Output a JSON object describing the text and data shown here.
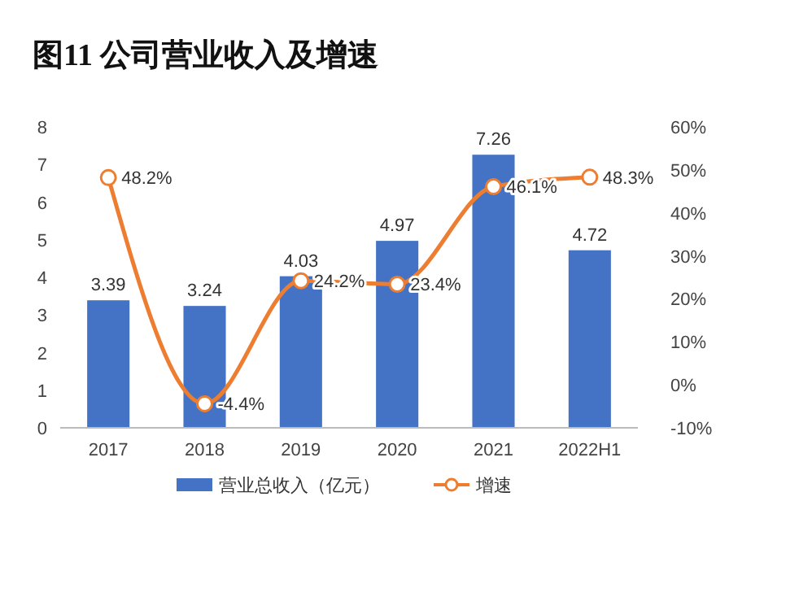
{
  "chart_data": {
    "type": "bar",
    "title": "图11  公司营业收入及增速",
    "categories": [
      "2017",
      "2018",
      "2019",
      "2020",
      "2021",
      "2022H1"
    ],
    "series": [
      {
        "name": "营业总收入（亿元）",
        "color": "#4472c4",
        "values": [
          3.39,
          3.24,
          4.03,
          4.97,
          7.26,
          4.72
        ],
        "value_labels": [
          "3.39",
          "3.24",
          "4.03",
          "4.97",
          "7.26",
          "4.72"
        ]
      },
      {
        "name": "增速",
        "type": "line",
        "axis": "y2",
        "color": "#ed7d31",
        "values": [
          48.2,
          -4.4,
          24.2,
          23.4,
          46.1,
          48.3
        ],
        "value_labels": [
          "48.2%",
          "-4.4%",
          "24.2%",
          "23.4%",
          "46.1%",
          "48.3%"
        ]
      }
    ],
    "ylim": [
      0,
      8
    ],
    "yticks": [
      0,
      1,
      2,
      3,
      4,
      5,
      6,
      7,
      8
    ],
    "y2lim": [
      -10,
      60
    ],
    "y2ticks": [
      {
        "value": -10,
        "label": "-10%"
      },
      {
        "value": 0,
        "label": "0%"
      },
      {
        "value": 10,
        "label": "10%"
      },
      {
        "value": 20,
        "label": "20%"
      },
      {
        "value": 30,
        "label": "30%"
      },
      {
        "value": 40,
        "label": "40%"
      },
      {
        "value": 50,
        "label": "50%"
      },
      {
        "value": 60,
        "label": "60%"
      }
    ],
    "marker": "circle",
    "legend": "bottom",
    "grid": false
  }
}
